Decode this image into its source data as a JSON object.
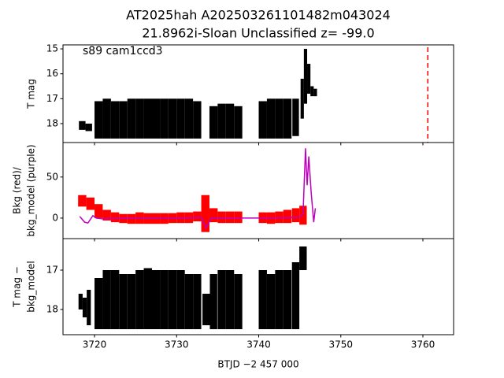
{
  "chart_data": [
    {
      "type": "range",
      "title": [
        "AT2025hah  A202503261101482m043024",
        "21.8962i-Sloan Unclassified z= -99.0"
      ],
      "annotation": "s89 cam1ccd3",
      "ylabel": [
        "T mag"
      ],
      "xlim": [
        3716.16,
        3763.74
      ],
      "xticks": [
        3720,
        3730,
        3740,
        3750,
        3760
      ],
      "ylim": [
        14.84,
        18.76
      ],
      "yticks": [
        15,
        16,
        17,
        18
      ],
      "yinvert": true,
      "vline": 3760.6,
      "vline_color": "#ff0000",
      "series": [
        {
          "type": "range",
          "color": "#000000",
          "x": [
            3718.5,
            3719.3,
            3720.5,
            3721.5,
            3722.5,
            3723.5,
            3724.5,
            3725.5,
            3726.5,
            3727.5,
            3728.5,
            3729.5,
            3730.5,
            3731.5,
            3732.5,
            3734.5,
            3735.5,
            3736.5,
            3737.5,
            3740.5,
            3741.5,
            3742.5,
            3743.5,
            3744.5,
            3745.3,
            3745.7,
            3746.1,
            3746.5,
            3746.9
          ],
          "min": [
            17.9,
            18.0,
            17.1,
            17.0,
            17.1,
            17.1,
            17.0,
            17.0,
            17.0,
            17.0,
            17.0,
            17.0,
            17.0,
            17.0,
            17.1,
            17.3,
            17.2,
            17.2,
            17.3,
            17.1,
            17.0,
            17.0,
            17.0,
            17.0,
            16.2,
            15.0,
            15.6,
            16.5,
            16.6
          ],
          "max": [
            18.25,
            18.3,
            18.6,
            18.6,
            18.6,
            18.6,
            18.6,
            18.6,
            18.6,
            18.6,
            18.6,
            18.6,
            18.6,
            18.6,
            18.6,
            18.6,
            18.6,
            18.6,
            18.6,
            18.6,
            18.6,
            18.6,
            18.6,
            18.5,
            17.8,
            17.2,
            16.8,
            16.9,
            16.9
          ]
        }
      ]
    },
    {
      "type": "range",
      "ylabel": [
        "Bkg (red)/",
        "bkg_model (purple)"
      ],
      "xlim": [
        3716.16,
        3763.74
      ],
      "xticks": [
        3720,
        3730,
        3740,
        3750,
        3760
      ],
      "ylim": [
        -25,
        92
      ],
      "yticks": [
        0,
        50
      ],
      "yinvert": false,
      "series": [
        {
          "type": "range",
          "color": "#ff0000",
          "x": [
            3718.5,
            3719.5,
            3720.5,
            3721.5,
            3722.5,
            3723.5,
            3724.5,
            3725.5,
            3726.5,
            3727.5,
            3728.5,
            3729.5,
            3730.5,
            3731.5,
            3732.5,
            3733.5,
            3734.5,
            3735.5,
            3736.5,
            3737.5,
            3740.5,
            3741.5,
            3742.5,
            3743.5,
            3744.5,
            3745.4
          ],
          "min": [
            14,
            10,
            0,
            -3,
            -5,
            -6,
            -7,
            -7,
            -7,
            -7,
            -7,
            -6,
            -6,
            -6,
            -4,
            -17,
            -5,
            -6,
            -6,
            -6,
            -6,
            -7,
            -6,
            -6,
            -5,
            -8
          ],
          "max": [
            28,
            25,
            17,
            10,
            7,
            5,
            5,
            7,
            6,
            6,
            6,
            6,
            7,
            7,
            8,
            28,
            12,
            8,
            8,
            8,
            7,
            7,
            8,
            10,
            12,
            15
          ]
        },
        {
          "type": "line",
          "color": "#bf00bf",
          "x": [
            3718.2,
            3718.8,
            3719.2,
            3719.8,
            3720.2,
            3721,
            3725,
            3730,
            3733,
            3733.6,
            3734.2,
            3735,
            3740,
            3745,
            3745.4,
            3745.7,
            3745.9,
            3746.1,
            3746.4,
            3746.7,
            3746.9
          ],
          "values": [
            2,
            -5,
            -6,
            3,
            0,
            -1,
            0,
            0,
            1,
            -12,
            0,
            0,
            0,
            1,
            5,
            85,
            40,
            75,
            30,
            -5,
            12
          ]
        }
      ]
    },
    {
      "type": "range",
      "ylabel": [
        "T mag −",
        "bkg_model"
      ],
      "xlabel": "BTJD −2 457 000",
      "xlim": [
        3716.16,
        3763.74
      ],
      "xticks": [
        3720,
        3730,
        3740,
        3750,
        3760
      ],
      "ylim": [
        16.2,
        18.64
      ],
      "yticks": [
        17,
        18
      ],
      "yinvert": true,
      "series": [
        {
          "type": "range",
          "color": "#000000",
          "x": [
            3718.3,
            3718.8,
            3719.3,
            3720.5,
            3721.5,
            3722.5,
            3723.5,
            3724.5,
            3725.5,
            3726.5,
            3727.5,
            3728.5,
            3729.5,
            3730.5,
            3731.5,
            3732.5,
            3733.6,
            3734.5,
            3735.5,
            3736.5,
            3737.5,
            3740.5,
            3741.5,
            3742.5,
            3743.5,
            3744.5,
            3745.4
          ],
          "min": [
            17.6,
            17.7,
            17.5,
            17.2,
            17.0,
            17.0,
            17.1,
            17.1,
            17.0,
            16.95,
            17.0,
            17.0,
            17.0,
            17.0,
            17.1,
            17.1,
            17.6,
            17.1,
            17.0,
            17.0,
            17.1,
            17.0,
            17.1,
            17.0,
            17.0,
            16.8,
            16.4
          ],
          "max": [
            18.0,
            18.2,
            18.4,
            18.5,
            18.5,
            18.5,
            18.5,
            18.5,
            18.5,
            18.5,
            18.5,
            18.5,
            18.5,
            18.5,
            18.5,
            18.5,
            18.4,
            18.5,
            18.5,
            18.5,
            18.5,
            18.5,
            18.5,
            18.5,
            18.5,
            18.5,
            17.0
          ]
        }
      ]
    }
  ]
}
